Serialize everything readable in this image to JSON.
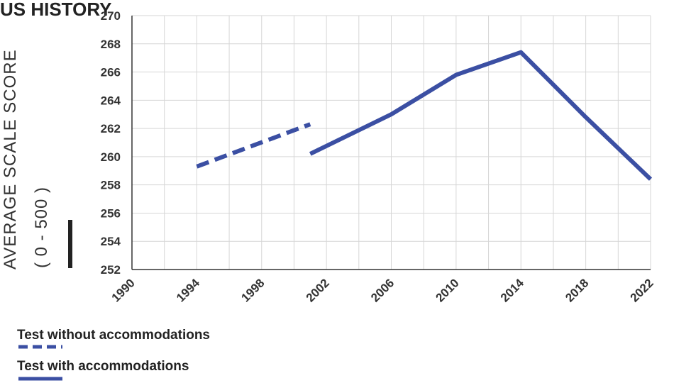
{
  "chart_data": {
    "type": "line",
    "title": "US HISTORY",
    "ylabel": "AVERAGE SCALE SCORE",
    "ylabel_sub": "( 0 - 500 )",
    "xlim": [
      1990,
      2022
    ],
    "ylim": [
      252,
      270
    ],
    "x_ticks": [
      1990,
      1994,
      1998,
      2002,
      2006,
      2010,
      2014,
      2018,
      2022
    ],
    "y_ticks": [
      252,
      254,
      256,
      258,
      260,
      262,
      264,
      266,
      268,
      270
    ],
    "grid": true,
    "axis_break": true,
    "series": [
      {
        "name": "Test without accommodations",
        "style": "dashed",
        "color": "#3b4fa3",
        "points": [
          [
            1994,
            259.3
          ],
          [
            2001,
            262.3
          ]
        ]
      },
      {
        "name": "Test with accommodations",
        "style": "solid",
        "color": "#3b4fa3",
        "points": [
          [
            2001,
            260.2
          ],
          [
            2006,
            263.0
          ],
          [
            2010,
            265.8
          ],
          [
            2014,
            267.4
          ],
          [
            2018,
            262.8
          ],
          [
            2022,
            258.4
          ]
        ]
      }
    ],
    "legend_placement": "bottom-left"
  }
}
